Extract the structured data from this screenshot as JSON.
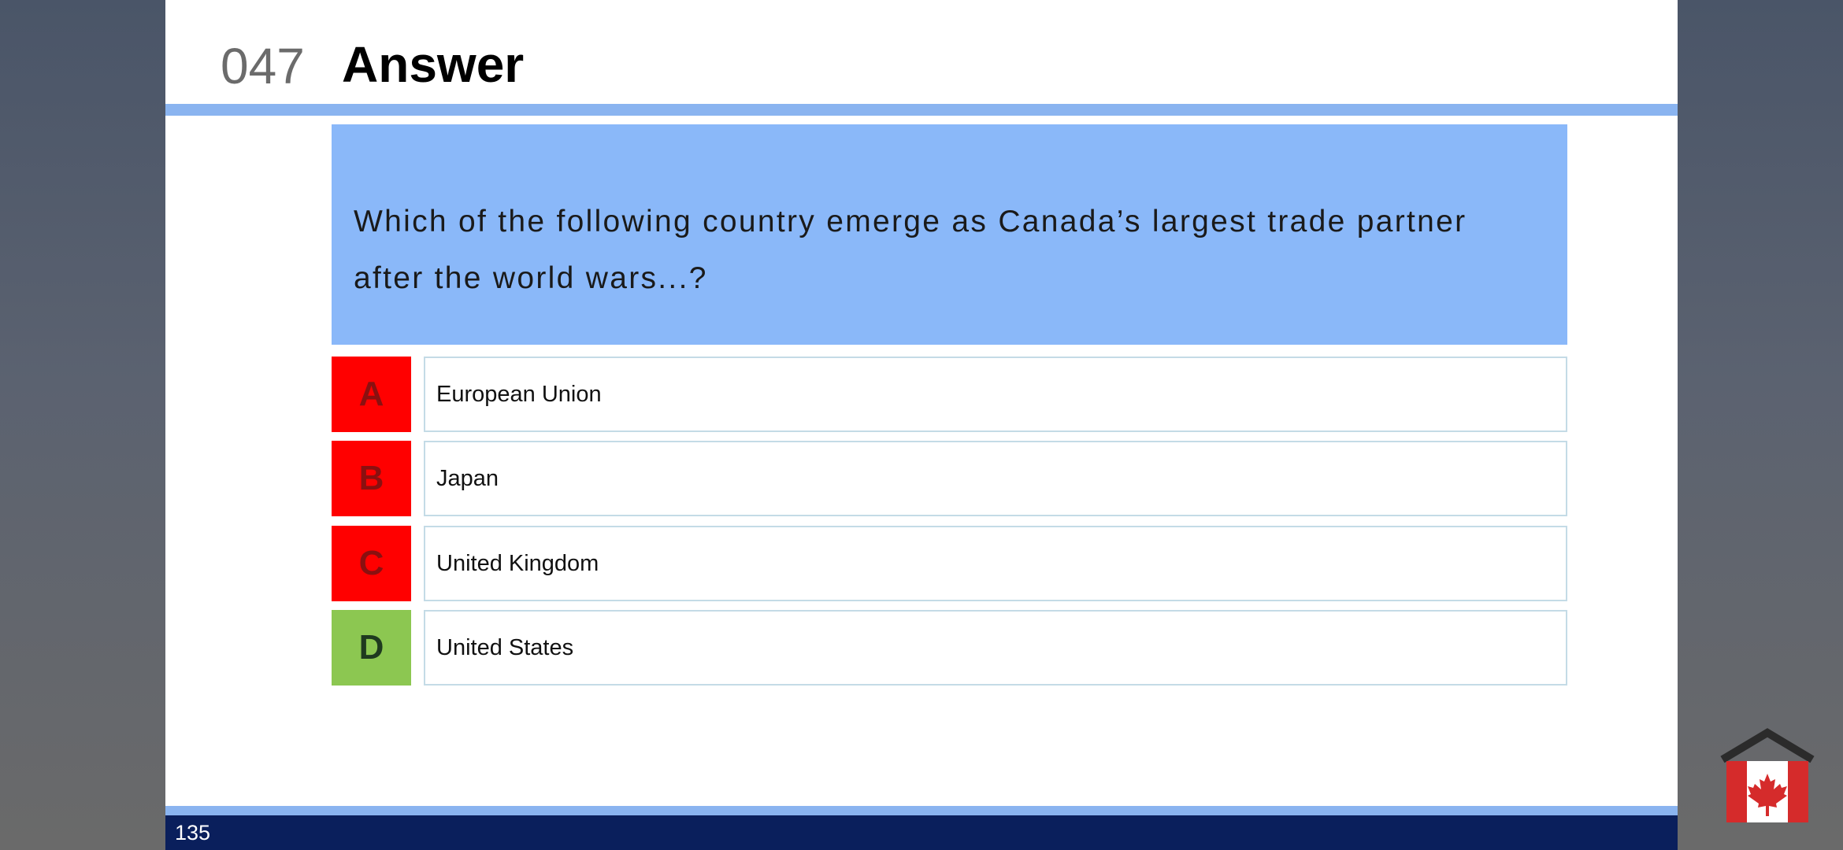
{
  "slide": {
    "question_number": "047",
    "title": "Answer",
    "question": "Which of the following country emerge as Canada’s largest trade partner after the world wars...?",
    "options": [
      {
        "letter": "A",
        "text": "European Union",
        "status": "wrong"
      },
      {
        "letter": "B",
        "text": "Japan",
        "status": "wrong"
      },
      {
        "letter": "C",
        "text": "United Kingdom",
        "status": "wrong"
      },
      {
        "letter": "D",
        "text": "United States",
        "status": "correct"
      }
    ],
    "page_number": "135"
  },
  "colors": {
    "header_rule": "#8ab4f0",
    "question_bg": "#8ab8f9",
    "wrong": "#ff0000",
    "correct": "#8cc751",
    "footer_bar": "#0a1f5c"
  },
  "logo": {
    "icon": "canada-flag-house-icon"
  }
}
